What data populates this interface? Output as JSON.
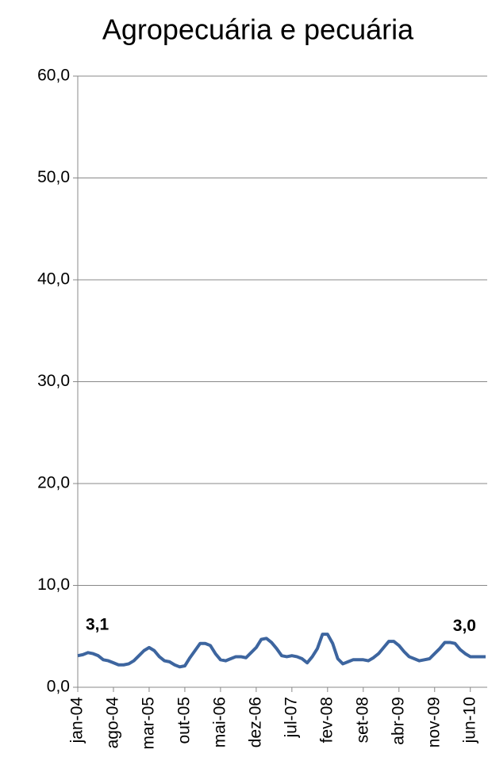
{
  "chart_data": {
    "type": "line",
    "title": "Agropecuária e pecuária",
    "categories": [
      "jan-04",
      null,
      null,
      null,
      null,
      null,
      null,
      "ago-04",
      null,
      null,
      null,
      null,
      null,
      null,
      "mar-05",
      null,
      null,
      null,
      null,
      null,
      null,
      "out-05",
      null,
      null,
      null,
      null,
      null,
      null,
      "mai-06",
      null,
      null,
      null,
      null,
      null,
      null,
      "dez-06",
      null,
      null,
      null,
      null,
      null,
      null,
      "jul-07",
      null,
      null,
      null,
      null,
      null,
      null,
      "fev-08",
      null,
      null,
      null,
      null,
      null,
      null,
      "set-08",
      null,
      null,
      null,
      null,
      null,
      null,
      "abr-09",
      null,
      null,
      null,
      null,
      null,
      null,
      "nov-09",
      null,
      null,
      null,
      null,
      null,
      null,
      "jun-10",
      null,
      null,
      null
    ],
    "series": [
      {
        "color": "#3d659f",
        "values": [
          3.1,
          3.2,
          3.4,
          3.3,
          3.1,
          2.7,
          2.6,
          2.4,
          2.2,
          2.2,
          2.3,
          2.6,
          3.1,
          3.6,
          3.9,
          3.6,
          3.0,
          2.6,
          2.5,
          2.2,
          2.0,
          2.1,
          2.9,
          3.6,
          4.3,
          4.3,
          4.1,
          3.3,
          2.7,
          2.6,
          2.8,
          3.0,
          3.0,
          2.9,
          3.4,
          3.9,
          4.7,
          4.8,
          4.4,
          3.8,
          3.1,
          3.0,
          3.1,
          3.0,
          2.8,
          2.4,
          3.0,
          3.8,
          5.2,
          5.2,
          4.3,
          2.8,
          2.3,
          2.5,
          2.7,
          2.7,
          2.7,
          2.6,
          2.9,
          3.3,
          3.9,
          4.5,
          4.5,
          4.1,
          3.5,
          3.0,
          2.8,
          2.6,
          2.7,
          2.8,
          3.3,
          3.8,
          4.4,
          4.4,
          4.3,
          3.7,
          3.3,
          3.0,
          3.0,
          3.0,
          3.0
        ],
        "value_labels": [
          "3,1",
          null,
          null,
          null,
          null,
          null,
          null,
          null,
          null,
          null,
          null,
          null,
          null,
          null,
          null,
          null,
          null,
          null,
          null,
          null,
          null,
          null,
          null,
          null,
          null,
          null,
          null,
          null,
          null,
          null,
          null,
          null,
          null,
          null,
          null,
          null,
          null,
          null,
          null,
          null,
          null,
          null,
          null,
          null,
          null,
          null,
          null,
          null,
          null,
          null,
          null,
          null,
          null,
          null,
          null,
          null,
          null,
          null,
          null,
          null,
          null,
          null,
          null,
          null,
          null,
          null,
          null,
          null,
          null,
          null,
          null,
          null,
          null,
          null,
          null,
          null,
          null,
          null,
          null,
          null,
          "3,0"
        ]
      }
    ],
    "ylim": [
      0,
      60
    ],
    "yticks": [
      {
        "value": 0,
        "label": "0,0"
      },
      {
        "value": 10,
        "label": "10,0"
      },
      {
        "value": 20,
        "label": "20,0"
      },
      {
        "value": 30,
        "label": "30,0"
      },
      {
        "value": 40,
        "label": "40,0"
      },
      {
        "value": 50,
        "label": "50,0"
      },
      {
        "value": 60,
        "label": "60,0"
      }
    ],
    "grid": true
  }
}
